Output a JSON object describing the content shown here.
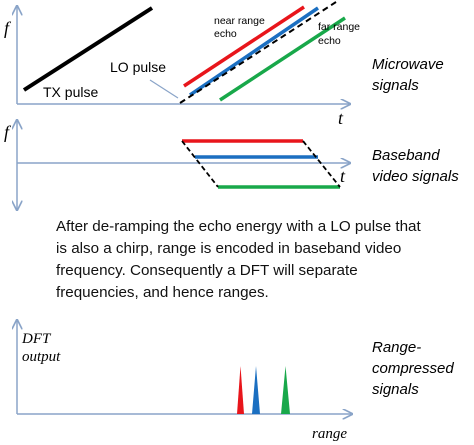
{
  "panels": {
    "microwave": {
      "ylabel": "f",
      "xlabel": "t",
      "tx_label": "TX pulse",
      "lo_label": "LO pulse",
      "near_label_l1": "near range",
      "near_label_l2": "echo",
      "far_label_l1": "far range",
      "far_label_l2": "echo",
      "side_l1": "Microwave",
      "side_l2": "signals"
    },
    "baseband": {
      "ylabel": "f",
      "xlabel": "t",
      "side_l1": "Baseband",
      "side_l2": "video signals"
    },
    "dft": {
      "ylabel_l1": "DFT",
      "ylabel_l2": "output",
      "xlabel": "range",
      "side_l1": "Range-",
      "side_l2": "compressed",
      "side_l3": "signals"
    }
  },
  "caption": "After de-ramping the echo energy with a LO pulse that is also a chirp, range is encoded in baseband video frequency.  Consequently a DFT will separate frequencies, and hence ranges.",
  "colors": {
    "near": "#e8151b",
    "mid": "#1b6fc1",
    "far": "#18a84a",
    "axis": "#8aa4c8",
    "tx": "#000000"
  }
}
